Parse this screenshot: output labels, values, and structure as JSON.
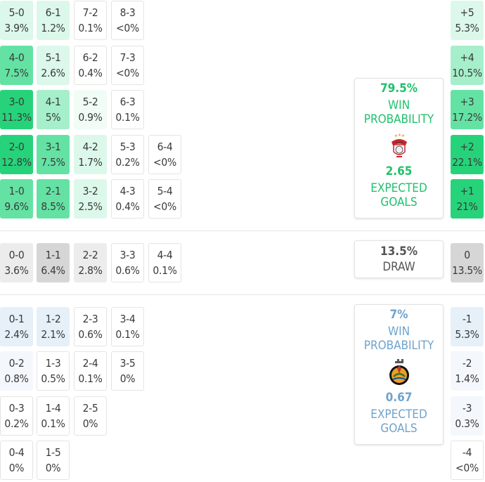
{
  "colors": {
    "home_strong": "#27d37a",
    "home_mid": "#64e2a4",
    "home_light": "#a6efcb",
    "home_pale": "#dcf8ea",
    "home_faint": "#f1fcf6",
    "draw_dark": "#d6d6d6",
    "draw_light": "#ececec",
    "away_pale": "#e5f0f9",
    "away_faint": "#f4f8fc",
    "home_text": "#1fc16b",
    "away_text": "#6fa3cc"
  },
  "home_scores": [
    {
      "score": "5-0",
      "pct": "3.9%",
      "shade": "home_pale"
    },
    {
      "score": "6-1",
      "pct": "1.2%",
      "shade": "home_pale"
    },
    {
      "score": "7-2",
      "pct": "0.1%",
      "shade": "white"
    },
    {
      "score": "8-3",
      "pct": "<0%",
      "shade": "white"
    },
    {
      "score": "4-0",
      "pct": "7.5%",
      "shade": "home_mid"
    },
    {
      "score": "5-1",
      "pct": "2.6%",
      "shade": "home_pale"
    },
    {
      "score": "6-2",
      "pct": "0.4%",
      "shade": "white"
    },
    {
      "score": "7-3",
      "pct": "<0%",
      "shade": "white"
    },
    {
      "score": "3-0",
      "pct": "11.3%",
      "shade": "home_strong"
    },
    {
      "score": "4-1",
      "pct": "5%",
      "shade": "home_light"
    },
    {
      "score": "5-2",
      "pct": "0.9%",
      "shade": "home_faint"
    },
    {
      "score": "6-3",
      "pct": "0.1%",
      "shade": "white"
    },
    {
      "score": "2-0",
      "pct": "12.8%",
      "shade": "home_strong"
    },
    {
      "score": "3-1",
      "pct": "7.5%",
      "shade": "home_mid"
    },
    {
      "score": "4-2",
      "pct": "1.7%",
      "shade": "home_pale"
    },
    {
      "score": "5-3",
      "pct": "0.2%",
      "shade": "white"
    },
    {
      "score": "6-4",
      "pct": "<0%",
      "shade": "white"
    },
    {
      "score": "1-0",
      "pct": "9.6%",
      "shade": "home_mid"
    },
    {
      "score": "2-1",
      "pct": "8.5%",
      "shade": "home_mid"
    },
    {
      "score": "3-2",
      "pct": "2.5%",
      "shade": "home_pale"
    },
    {
      "score": "4-3",
      "pct": "0.4%",
      "shade": "white"
    },
    {
      "score": "5-4",
      "pct": "<0%",
      "shade": "white"
    }
  ],
  "draw_scores": [
    {
      "score": "0-0",
      "pct": "3.6%",
      "shade": "draw_light"
    },
    {
      "score": "1-1",
      "pct": "6.4%",
      "shade": "draw_dark"
    },
    {
      "score": "2-2",
      "pct": "2.8%",
      "shade": "draw_light"
    },
    {
      "score": "3-3",
      "pct": "0.6%",
      "shade": "white"
    },
    {
      "score": "4-4",
      "pct": "0.1%",
      "shade": "white"
    }
  ],
  "away_scores": [
    {
      "score": "0-1",
      "pct": "2.4%",
      "shade": "away_pale"
    },
    {
      "score": "1-2",
      "pct": "2.1%",
      "shade": "away_pale"
    },
    {
      "score": "2-3",
      "pct": "0.6%",
      "shade": "white"
    },
    {
      "score": "3-4",
      "pct": "0.1%",
      "shade": "white"
    },
    {
      "score": "0-2",
      "pct": "0.8%",
      "shade": "away_faint"
    },
    {
      "score": "1-3",
      "pct": "0.5%",
      "shade": "white"
    },
    {
      "score": "2-4",
      "pct": "0.1%",
      "shade": "white"
    },
    {
      "score": "3-5",
      "pct": "0%",
      "shade": "white"
    },
    {
      "score": "0-3",
      "pct": "0.2%",
      "shade": "white"
    },
    {
      "score": "1-4",
      "pct": "0.1%",
      "shade": "white"
    },
    {
      "score": "2-5",
      "pct": "0%",
      "shade": "white"
    },
    {
      "score": "0-4",
      "pct": "0%",
      "shade": "white"
    },
    {
      "score": "1-5",
      "pct": "0%",
      "shade": "white"
    }
  ],
  "margins": [
    {
      "label": "+5",
      "pct": "5.3%",
      "shade": "home_pale"
    },
    {
      "label": "+4",
      "pct": "10.5%",
      "shade": "home_light"
    },
    {
      "label": "+3",
      "pct": "17.2%",
      "shade": "home_mid"
    },
    {
      "label": "+2",
      "pct": "22.1%",
      "shade": "home_strong"
    },
    {
      "label": "+1",
      "pct": "21%",
      "shade": "home_strong"
    },
    {
      "label": "0",
      "pct": "13.5%",
      "shade": "draw_dark"
    },
    {
      "label": "-1",
      "pct": "5.3%",
      "shade": "away_pale"
    },
    {
      "label": "-2",
      "pct": "1.4%",
      "shade": "away_faint"
    },
    {
      "label": "-3",
      "pct": "0.3%",
      "shade": "away_faint"
    },
    {
      "label": "-4",
      "pct": "<0%",
      "shade": "white"
    }
  ],
  "home_card": {
    "win_pct": "79.5%",
    "win_label_1": "WIN",
    "win_label_2": "PROBABILITY",
    "xg": "2.65",
    "xg_label_1": "EXPECTED",
    "xg_label_2": "GOALS",
    "crest_icon": "benfica-crest-icon"
  },
  "draw_card": {
    "pct": "13.5%",
    "label": "DRAW"
  },
  "away_card": {
    "win_pct": "7%",
    "win_label_1": "WIN",
    "win_label_2": "PROBABILITY",
    "xg": "0.67",
    "xg_label_1": "EXPECTED",
    "xg_label_2": "GOALS",
    "crest_icon": "rio-ave-crest-icon"
  }
}
